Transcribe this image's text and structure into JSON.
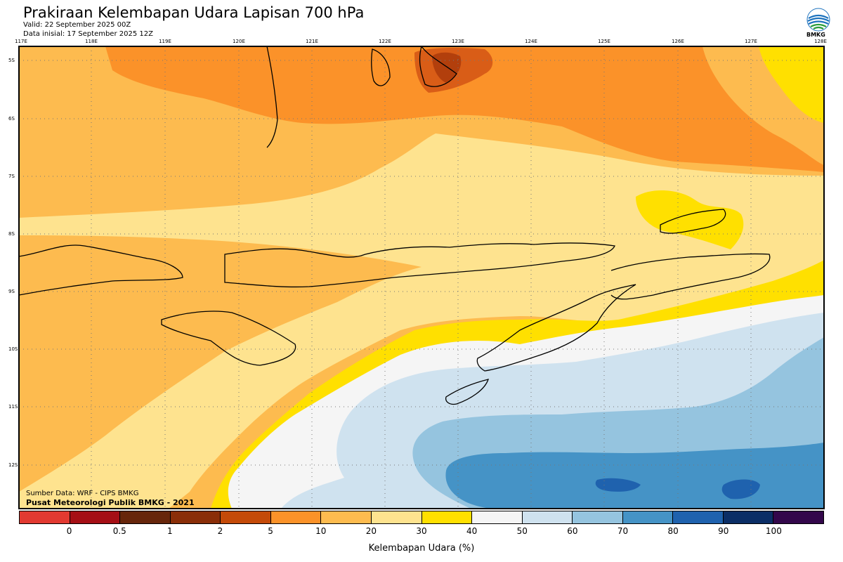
{
  "header": {
    "title": "Prakiraan Kelembapan Udara Lapisan 700 hPa",
    "valid": "Valid: 22 September 2025 00Z",
    "init": "Data inisial: 17 September 2025 12Z",
    "logo_text": "BMKG"
  },
  "map": {
    "lon_labels": [
      "117E",
      "118E",
      "119E",
      "120E",
      "121E",
      "122E",
      "123E",
      "124E",
      "125E",
      "126E",
      "127E",
      "128E"
    ],
    "lat_labels": [
      "5S",
      "6S",
      "7S",
      "8S",
      "9S",
      "10S",
      "11S",
      "12S"
    ],
    "region": "Nusa Tenggara",
    "colors": {
      "band_0_10": "#fb9229",
      "band_10_20": "#fdbb4f",
      "band_20_30": "#fee38f",
      "band_30_40": "#ffe000",
      "band_40_50": "#f5f5f5",
      "band_50_60": "#cfe2ef",
      "band_60_70": "#95c4df",
      "band_70_80": "#4593c6",
      "band_80_90": "#1f62ae",
      "band_5_10_dark": "#d95d17",
      "band_2_5_darker": "#b23f0c"
    }
  },
  "footer": {
    "source_data": "Sumber Data: WRF - CIPS BMKG",
    "source_center": "Pusat Meteorologi Publik BMKG - 2021"
  },
  "colorbar": {
    "colors": [
      "#e23a31",
      "#a50f15",
      "#67260b",
      "#8a2e08",
      "#c44a08",
      "#fb9229",
      "#fdbb4f",
      "#fee38f",
      "#ffe000",
      "#f5f5f5",
      "#cfe2ef",
      "#95c4df",
      "#4593c6",
      "#1f62ae",
      "#0b2e66",
      "#33074b"
    ],
    "ticks": [
      "0",
      "0.5",
      "1",
      "2",
      "5",
      "10",
      "20",
      "30",
      "40",
      "50",
      "60",
      "70",
      "80",
      "90",
      "100"
    ],
    "title": "Kelembapan Udara (%)"
  }
}
